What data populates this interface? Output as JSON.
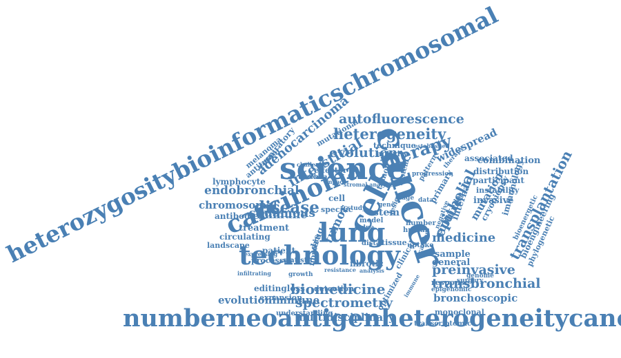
{
  "color": "#4a80b4",
  "background": "#ffffff",
  "words": [
    "heterozygositybioinformaticschromosomal",
    "numberneoantigenheterogeneitycancer",
    "science",
    "technology",
    "cancer",
    "carcinoma",
    "cell",
    "lung",
    "therapy",
    "disease",
    "heterogeneity",
    "autofluorescence",
    "evolution",
    "interstitial",
    "adenocarcinoma",
    "epithelial",
    "transplantation",
    "biomedicine",
    "spectrometry",
    "preinvasive",
    "transbronchial",
    "bronchoscopic",
    "evolutionimmune",
    "multidisciplinary",
    "medicine",
    "culture",
    "tumor",
    "stem",
    "immune",
    "squamous",
    "endobronchial",
    "chromosomal",
    "antibodies",
    "treatment",
    "circulating",
    "landscape",
    "lymphocyte",
    "melanoma",
    "antitumor",
    "respiratory",
    "mutational",
    "widespread",
    "associated",
    "combination",
    "distribution",
    "participant",
    "instability",
    "invasive",
    "mutation",
    "immunology",
    "bioengineering",
    "phylogenetic",
    "bioenergetic",
    "cryobiopsy",
    "internal",
    "primary",
    "sample",
    "general",
    "patient",
    "processes",
    "statistic",
    "fibrotic",
    "fibrosis",
    "drug",
    "editingloss",
    "expansion",
    "detection",
    "understanding",
    "monoclonal",
    "transcriptomic",
    "optimized",
    "clinical",
    "human",
    "uptake",
    "tissue",
    "response",
    "epigenomic",
    "technique",
    "activity",
    "effector",
    "trachea",
    "specific",
    "study",
    "number",
    "distal",
    "ctdna",
    "stage",
    "system",
    "progression",
    "pattern",
    "negative",
    "lesion",
    "established",
    "challenge",
    "eradicate",
    "impact",
    "stromal analysis",
    "resistance",
    "infiltrating",
    "expressing",
    "cell",
    "tumor",
    "model",
    "gene",
    "data",
    "dna",
    "therapy",
    "analysis",
    "growth",
    "surgery",
    "genome",
    "immune",
    "cancer"
  ]
}
